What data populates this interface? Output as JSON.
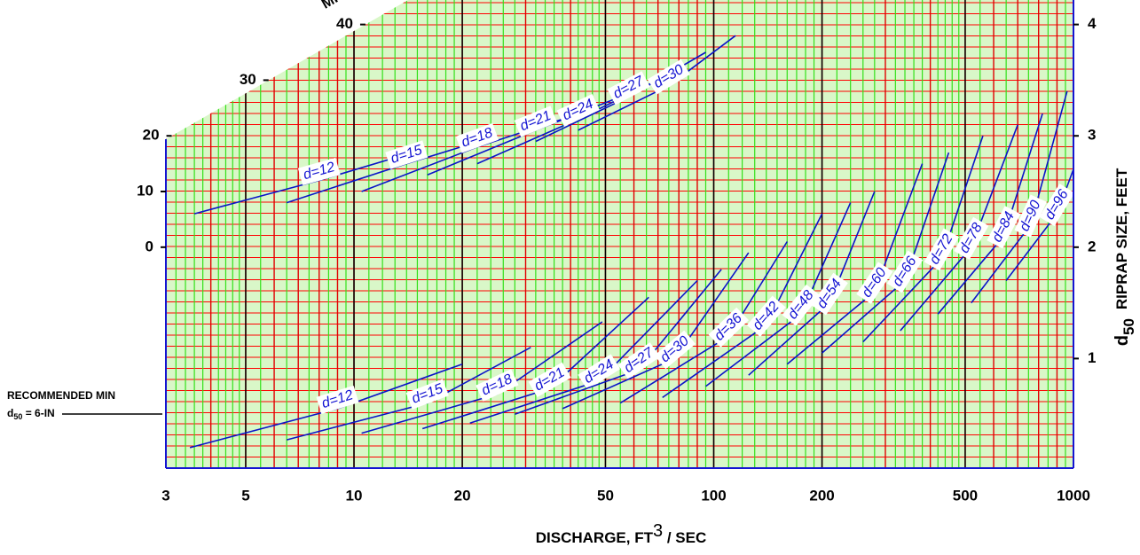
{
  "chart_data": {
    "type": "line",
    "xlabel": "DISCHARGE, FT",
    "xlabel_sup": "3",
    "xlabel_end": " / SEC",
    "y2label_d": "d",
    "y2label_sub": "50",
    "y2label": "RIPRAP SIZE, FEET",
    "annotations": {
      "min_line1": "RECOMMENDED MIN",
      "min_d": "d",
      "min_sub": "50",
      "min_end": " = 6-IN",
      "corner": "MI"
    },
    "x_log": true,
    "xlim": [
      3,
      1000
    ],
    "xticks": [
      3,
      5,
      10,
      20,
      50,
      100,
      200,
      500,
      1000
    ],
    "ylim": [
      -40,
      44.4
    ],
    "yticks": [
      0,
      10,
      20,
      30,
      40
    ],
    "y2lim": [
      0,
      4.22
    ],
    "y2ticks": [
      1,
      2,
      3,
      4
    ],
    "color": "#0a14c8",
    "series": [
      {
        "name": "d=12",
        "axis": "y2",
        "x": [
          3.6,
          8,
          14.5
        ],
        "values": [
          2.3,
          2.6,
          2.85
        ]
      },
      {
        "name": "d=15",
        "axis": "y2",
        "x": [
          6.5,
          14,
          25
        ],
        "values": [
          2.4,
          2.75,
          3.0
        ]
      },
      {
        "name": "d=18",
        "axis": "y2",
        "x": [
          10.5,
          22,
          38
        ],
        "values": [
          2.5,
          2.9,
          3.15
        ]
      },
      {
        "name": "d=21",
        "axis": "y2",
        "x": [
          16,
          32,
          55
        ],
        "values": [
          2.65,
          3.05,
          3.35
        ]
      },
      {
        "name": "d=24",
        "axis": "y2",
        "x": [
          22,
          42,
          75
        ],
        "values": [
          2.75,
          3.15,
          3.55
        ]
      },
      {
        "name": "d=27",
        "axis": "y2",
        "x": [
          32,
          58,
          95
        ],
        "values": [
          2.95,
          3.35,
          3.75
        ]
      },
      {
        "name": "d=30",
        "axis": "y2",
        "x": [
          42,
          75,
          115
        ],
        "values": [
          3.05,
          3.45,
          3.9
        ]
      },
      {
        "name": "d=12",
        "axis": "y2",
        "x": [
          3.5,
          9,
          20
        ],
        "values": [
          0.2,
          0.55,
          0.95
        ]
      },
      {
        "name": "d=15",
        "axis": "y2",
        "x": [
          6.5,
          16,
          31
        ],
        "values": [
          0.27,
          0.6,
          1.1
        ]
      },
      {
        "name": "d=18",
        "axis": "y2",
        "x": [
          10.5,
          25,
          49
        ],
        "values": [
          0.33,
          0.68,
          1.33
        ]
      },
      {
        "name": "d=21",
        "axis": "y2",
        "x": [
          15.5,
          35,
          66
        ],
        "values": [
          0.37,
          0.73,
          1.55
        ]
      },
      {
        "name": "d=24",
        "axis": "y2",
        "x": [
          21,
          48,
          90
        ],
        "values": [
          0.42,
          0.8,
          1.7
        ]
      },
      {
        "name": "d=27",
        "axis": "y2",
        "x": [
          28,
          62,
          105
        ],
        "values": [
          0.5,
          0.9,
          1.8
        ]
      },
      {
        "name": "d=30",
        "axis": "y2",
        "x": [
          38,
          78,
          125
        ],
        "values": [
          0.55,
          1.0,
          1.95
        ]
      },
      {
        "name": "d=36",
        "axis": "y2",
        "x": [
          55,
          110,
          160
        ],
        "values": [
          0.6,
          1.2,
          2.05
        ]
      },
      {
        "name": "d=42",
        "axis": "y2",
        "x": [
          72,
          140,
          200
        ],
        "values": [
          0.65,
          1.3,
          2.3
        ]
      },
      {
        "name": "d=48",
        "axis": "y2",
        "x": [
          95,
          175,
          240
        ],
        "values": [
          0.75,
          1.4,
          2.4
        ]
      },
      {
        "name": "d=54",
        "axis": "y2",
        "x": [
          125,
          210,
          280
        ],
        "values": [
          0.85,
          1.5,
          2.5
        ]
      },
      {
        "name": "d=60",
        "axis": "y2",
        "x": [
          160,
          280,
          380
        ],
        "values": [
          0.95,
          1.6,
          2.75
        ]
      },
      {
        "name": "d=66",
        "axis": "y2",
        "x": [
          200,
          340,
          450
        ],
        "values": [
          1.05,
          1.7,
          2.85
        ]
      },
      {
        "name": "d=72",
        "axis": "y2",
        "x": [
          260,
          430,
          560
        ],
        "values": [
          1.15,
          1.9,
          3.0
        ]
      },
      {
        "name": "d=78",
        "axis": "y2",
        "x": [
          330,
          520,
          700
        ],
        "values": [
          1.25,
          2.0,
          3.1
        ]
      },
      {
        "name": "d=84",
        "axis": "y2",
        "x": [
          420,
          640,
          820
        ],
        "values": [
          1.4,
          2.1,
          3.2
        ]
      },
      {
        "name": "d=90",
        "axis": "y2",
        "x": [
          520,
          760,
          960
        ],
        "values": [
          1.5,
          2.2,
          3.4
        ]
      },
      {
        "name": "d=96",
        "axis": "y2",
        "x": [
          650,
          900,
          1000
        ],
        "values": [
          1.7,
          2.3,
          2.7
        ]
      }
    ]
  }
}
